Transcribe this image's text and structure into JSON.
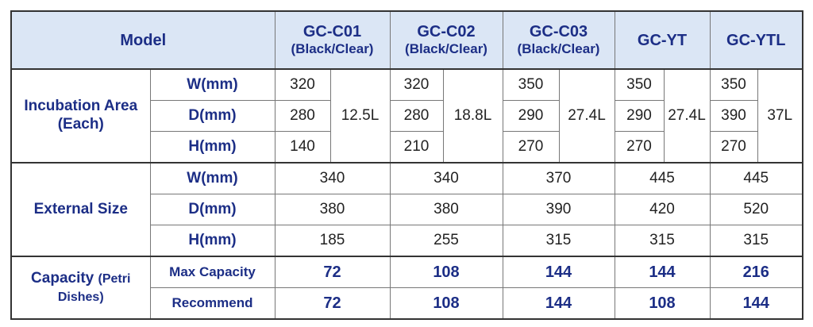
{
  "header": {
    "model": "Model",
    "models": [
      {
        "name": "GC-C01",
        "variant": "(Black/Clear)"
      },
      {
        "name": "GC-C02",
        "variant": "(Black/Clear)"
      },
      {
        "name": "GC-C03",
        "variant": "(Black/Clear)"
      },
      {
        "name": "GC-YT"
      },
      {
        "name": "GC-YTL"
      }
    ]
  },
  "sections": [
    {
      "label": "Incubation Area (Each)",
      "volumes": [
        "12.5L",
        "18.8L",
        "27.4L",
        "27.4L",
        "37L"
      ],
      "rows": [
        {
          "label": "W(mm)",
          "values": [
            "320",
            "320",
            "350",
            "350",
            "350"
          ]
        },
        {
          "label": "D(mm)",
          "values": [
            "280",
            "280",
            "290",
            "290",
            "390"
          ]
        },
        {
          "label": "H(mm)",
          "values": [
            "140",
            "210",
            "270",
            "270",
            "270"
          ]
        }
      ]
    },
    {
      "label": "External Size",
      "rows": [
        {
          "label": "W(mm)",
          "values": [
            "340",
            "340",
            "370",
            "445",
            "445"
          ]
        },
        {
          "label": "D(mm)",
          "values": [
            "380",
            "380",
            "390",
            "420",
            "520"
          ]
        },
        {
          "label": "H(mm)",
          "values": [
            "185",
            "255",
            "315",
            "315",
            "315"
          ]
        }
      ]
    },
    {
      "label": "Capacity",
      "label_note": "(Petri Dishes)",
      "rows": [
        {
          "label": "Max Capacity",
          "values": [
            "72",
            "108",
            "144",
            "144",
            "216"
          ]
        },
        {
          "label": "Recommend",
          "values": [
            "72",
            "108",
            "144",
            "108",
            "144"
          ]
        }
      ]
    }
  ]
}
